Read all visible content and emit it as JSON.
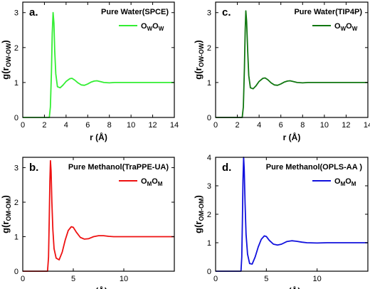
{
  "chart_data": [
    {
      "type": "line",
      "panel_label": "a.",
      "title": "Pure Water(SPCE)",
      "legend": {
        "main": "O",
        "sub1": "W",
        "mid": "O",
        "sub2": "W"
      },
      "xlabel": {
        "main": "r (",
        "sym": "Å",
        "end": ")"
      },
      "ylabel": {
        "pre": "g(r",
        "sub": "OW-OW",
        "post": ")"
      },
      "xlim": [
        0,
        14
      ],
      "ylim": [
        0,
        3.3
      ],
      "xticks": [
        "0",
        "2",
        "4",
        "6",
        "8",
        "10",
        "12",
        "14"
      ],
      "xtick_values": [
        0,
        2,
        4,
        6,
        8,
        10,
        12,
        14
      ],
      "yticks": [
        "0",
        "1",
        "2",
        "3"
      ],
      "ytick_values": [
        0,
        1,
        2,
        3
      ],
      "color": "#33ee33",
      "x": [
        0,
        2.45,
        2.55,
        2.65,
        2.72,
        2.8,
        2.88,
        2.95,
        3.05,
        3.2,
        3.45,
        3.7,
        4.0,
        4.35,
        4.55,
        4.8,
        5.1,
        5.4,
        5.7,
        6.0,
        6.3,
        6.6,
        6.85,
        7.1,
        7.5,
        8.0,
        8.5,
        9,
        10,
        11,
        12,
        13,
        14
      ],
      "y": [
        0,
        0,
        0.3,
        1.3,
        2.4,
        3.0,
        2.7,
        1.9,
        1.25,
        0.88,
        0.85,
        0.92,
        1.03,
        1.11,
        1.12,
        1.07,
        0.99,
        0.93,
        0.92,
        0.96,
        1.01,
        1.04,
        1.05,
        1.03,
        1.0,
        0.99,
        1.0,
        1.0,
        1.0,
        1.0,
        1.0,
        1.0,
        1.0
      ]
    },
    {
      "type": "line",
      "panel_label": "c.",
      "title": "Pure Water(TIP4P)",
      "legend": {
        "main": "O",
        "sub1": "W",
        "mid": "O",
        "sub2": "W"
      },
      "xlabel": {
        "main": "r (",
        "sym": "Å",
        "end": ")"
      },
      "ylabel": {
        "pre": "g(r",
        "sub": "OW-OW",
        "post": ")"
      },
      "xlim": [
        0,
        14
      ],
      "ylim": [
        0,
        3.3
      ],
      "xticks": [
        "0",
        "2",
        "4",
        "6",
        "8",
        "10",
        "12",
        "14"
      ],
      "xtick_values": [
        0,
        2,
        4,
        6,
        8,
        10,
        12,
        14
      ],
      "yticks": [
        "0",
        "1",
        "2",
        "3"
      ],
      "ytick_values": [
        0,
        1,
        2,
        3
      ],
      "color": "#117711",
      "x": [
        0,
        2.45,
        2.55,
        2.65,
        2.72,
        2.78,
        2.85,
        2.95,
        3.05,
        3.2,
        3.45,
        3.7,
        4.0,
        4.35,
        4.55,
        4.8,
        5.1,
        5.4,
        5.7,
        6.0,
        6.3,
        6.6,
        6.85,
        7.1,
        7.5,
        8.0,
        8.5,
        9,
        10,
        11,
        12,
        13,
        14
      ],
      "y": [
        0,
        0,
        0.3,
        1.4,
        2.5,
        3.05,
        2.75,
        1.9,
        1.2,
        0.85,
        0.82,
        0.9,
        1.03,
        1.12,
        1.13,
        1.08,
        0.99,
        0.93,
        0.92,
        0.96,
        1.01,
        1.04,
        1.05,
        1.03,
        1.0,
        0.99,
        1.0,
        1.0,
        1.0,
        1.0,
        1.0,
        1.0,
        1.0
      ]
    },
    {
      "type": "line",
      "panel_label": "b.",
      "title": "Pure Methanol(TraPPE-UA)",
      "legend": {
        "main": "O",
        "sub1": "M",
        "mid": "O",
        "sub2": "M"
      },
      "xlabel": {
        "main": "r (",
        "sym": "Å",
        "end": ")"
      },
      "ylabel": {
        "pre": "g(r",
        "sub": "OM-OM",
        "post": ")"
      },
      "xlim": [
        0,
        15
      ],
      "ylim": [
        0,
        3.3
      ],
      "xticks": [
        "0",
        "5",
        "10"
      ],
      "xtick_values": [
        0,
        5,
        10
      ],
      "yticks": [
        "0",
        "1",
        "2",
        "3"
      ],
      "ytick_values": [
        0,
        1,
        2,
        3
      ],
      "color": "#ee1111",
      "x": [
        0,
        2.45,
        2.55,
        2.62,
        2.68,
        2.74,
        2.8,
        2.88,
        2.98,
        3.1,
        3.3,
        3.6,
        3.9,
        4.2,
        4.5,
        4.8,
        5.0,
        5.3,
        5.7,
        6.1,
        6.5,
        7.0,
        7.5,
        8.0,
        8.5,
        9.0,
        10,
        11,
        12,
        13,
        14,
        15
      ],
      "y": [
        0,
        0,
        0.4,
        1.5,
        2.6,
        3.2,
        2.9,
        2.0,
        1.2,
        0.65,
        0.38,
        0.33,
        0.55,
        0.9,
        1.18,
        1.29,
        1.27,
        1.13,
        0.98,
        0.93,
        0.94,
        1.0,
        1.03,
        1.03,
        1.01,
        1.0,
        1.0,
        1.0,
        1.0,
        1.0,
        1.0,
        1.0
      ]
    },
    {
      "type": "line",
      "panel_label": "d.",
      "title": "Pure Methanol(OPLS-AA )",
      "legend": {
        "main": "O",
        "sub1": "M",
        "mid": "O",
        "sub2": "M"
      },
      "xlabel": {
        "main": "r (",
        "sym": "Å",
        "end": ")"
      },
      "ylabel": {
        "pre": "g(r",
        "sub": "OM-OM",
        "post": ")"
      },
      "xlim": [
        0,
        15
      ],
      "ylim": [
        0,
        4
      ],
      "xticks": [
        "0",
        "5",
        "10"
      ],
      "xtick_values": [
        0,
        5,
        10
      ],
      "yticks": [
        "0",
        "1",
        "2",
        "3",
        "4"
      ],
      "ytick_values": [
        0,
        1,
        2,
        3,
        4
      ],
      "color": "#1111dd",
      "x": [
        0,
        2.5,
        2.58,
        2.64,
        2.7,
        2.76,
        2.82,
        2.9,
        3.0,
        3.15,
        3.35,
        3.6,
        3.9,
        4.2,
        4.5,
        4.8,
        5.0,
        5.3,
        5.7,
        6.1,
        6.5,
        7.0,
        7.5,
        8.0,
        8.5,
        9.0,
        10,
        11,
        12,
        13,
        14,
        15
      ],
      "y": [
        0,
        0,
        0.5,
        1.8,
        3.2,
        4.0,
        3.6,
        2.4,
        1.3,
        0.6,
        0.27,
        0.25,
        0.5,
        0.85,
        1.12,
        1.24,
        1.22,
        1.08,
        0.95,
        0.92,
        0.95,
        1.04,
        1.07,
        1.05,
        1.02,
        1.0,
        0.99,
        1.0,
        1.0,
        1.0,
        1.0,
        1.0
      ]
    }
  ]
}
